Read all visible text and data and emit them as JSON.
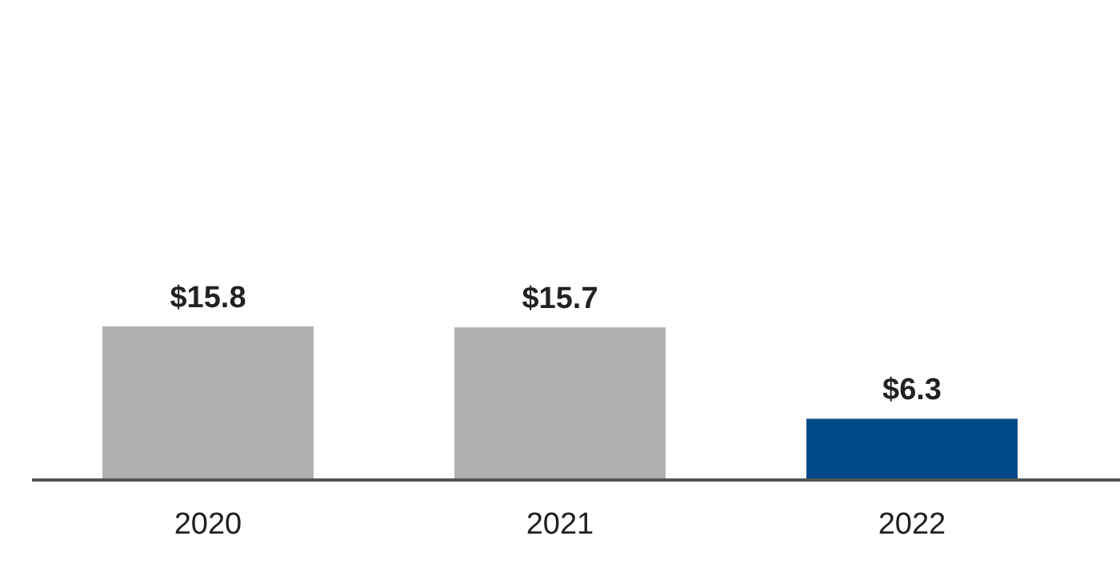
{
  "chart_data": {
    "type": "bar",
    "categories": [
      "2020",
      "2021",
      "2022"
    ],
    "values": [
      15.8,
      15.7,
      6.3
    ],
    "colors": [
      "#b0b0b0",
      "#b0b0b0",
      "#004b87"
    ],
    "value_labels": [
      "$15.8",
      "$15.7",
      "$6.3"
    ]
  }
}
